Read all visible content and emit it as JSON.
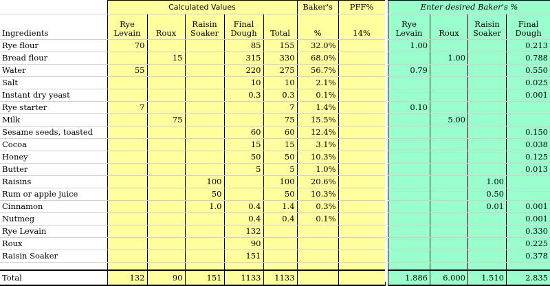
{
  "left_headers": {
    "calculated_values": "Calculated Values",
    "bakers_top": "Baker's",
    "pff_label": "PFF%",
    "ingredients": "Ingredients",
    "rye_levain_1": "Rye",
    "rye_levain_2": "Levain",
    "roux": "Roux",
    "raisin_soaker_1": "Raisin",
    "raisin_soaker_2": "Soaker",
    "final_dough_1": "Final",
    "final_dough_2": "Dough",
    "total": "Total",
    "percent": "%",
    "pff_value": "14%"
  },
  "right_headers": {
    "title": "Enter desired Baker's %",
    "rye_levain_1": "Rye",
    "rye_levain_2": "Levain",
    "roux": "Roux",
    "raisin_soaker_1": "Raisin",
    "raisin_soaker_2": "Soaker",
    "final_dough_1": "Final",
    "final_dough_2": "Dough"
  },
  "rows": [
    {
      "name": "Rye flour",
      "rye": "70",
      "roux": "",
      "raisin": "",
      "final": "85",
      "total": "155",
      "pct": "32.0%",
      "r_rye": "1.00",
      "r_roux": "",
      "r_raisin": "",
      "r_final": "0.213"
    },
    {
      "name": "Bread flour",
      "rye": "",
      "roux": "15",
      "raisin": "",
      "final": "315",
      "total": "330",
      "pct": "68.0%",
      "r_rye": "",
      "r_roux": "1.00",
      "r_raisin": "",
      "r_final": "0.788"
    },
    {
      "name": "Water",
      "rye": "55",
      "roux": "",
      "raisin": "",
      "final": "220",
      "total": "275",
      "pct": "56.7%",
      "r_rye": "0.79",
      "r_roux": "",
      "r_raisin": "",
      "r_final": "0.550"
    },
    {
      "name": "Salt",
      "rye": "",
      "roux": "",
      "raisin": "",
      "final": "10",
      "total": "10",
      "pct": "2.1%",
      "r_rye": "",
      "r_roux": "",
      "r_raisin": "",
      "r_final": "0.025"
    },
    {
      "name": "Instant dry yeast",
      "rye": "",
      "roux": "",
      "raisin": "",
      "final": "0.3",
      "total": "0.3",
      "pct": "0.1%",
      "r_rye": "",
      "r_roux": "",
      "r_raisin": "",
      "r_final": "0.001"
    },
    {
      "name": "Rye starter",
      "rye": "7",
      "roux": "",
      "raisin": "",
      "final": "",
      "total": "7",
      "pct": "1.4%",
      "r_rye": "0.10",
      "r_roux": "",
      "r_raisin": "",
      "r_final": ""
    },
    {
      "name": "Milk",
      "rye": "",
      "roux": "75",
      "raisin": "",
      "final": "",
      "total": "75",
      "pct": "15.5%",
      "r_rye": "",
      "r_roux": "5.00",
      "r_raisin": "",
      "r_final": ""
    },
    {
      "name": "Sesame seeds, toasted",
      "rye": "",
      "roux": "",
      "raisin": "",
      "final": "60",
      "total": "60",
      "pct": "12.4%",
      "r_rye": "",
      "r_roux": "",
      "r_raisin": "",
      "r_final": "0.150"
    },
    {
      "name": "Cocoa",
      "rye": "",
      "roux": "",
      "raisin": "",
      "final": "15",
      "total": "15",
      "pct": "3.1%",
      "r_rye": "",
      "r_roux": "",
      "r_raisin": "",
      "r_final": "0.038"
    },
    {
      "name": "Honey",
      "rye": "",
      "roux": "",
      "raisin": "",
      "final": "50",
      "total": "50",
      "pct": "10.3%",
      "r_rye": "",
      "r_roux": "",
      "r_raisin": "",
      "r_final": "0.125"
    },
    {
      "name": "Butter",
      "rye": "",
      "roux": "",
      "raisin": "",
      "final": "5",
      "total": "5",
      "pct": "1.0%",
      "r_rye": "",
      "r_roux": "",
      "r_raisin": "",
      "r_final": "0.013"
    },
    {
      "name": "Raisins",
      "rye": "",
      "roux": "",
      "raisin": "100",
      "final": "",
      "total": "100",
      "pct": "20.6%",
      "r_rye": "",
      "r_roux": "",
      "r_raisin": "1.00",
      "r_final": ""
    },
    {
      "name": "Rum or apple juice",
      "rye": "",
      "roux": "",
      "raisin": "50",
      "final": "",
      "total": "50",
      "pct": "10.3%",
      "r_rye": "",
      "r_roux": "",
      "r_raisin": "0.50",
      "r_final": ""
    },
    {
      "name": "Cinnamon",
      "rye": "",
      "roux": "",
      "raisin": "1.0",
      "final": "0.4",
      "total": "1.4",
      "pct": "0.3%",
      "r_rye": "",
      "r_roux": "",
      "r_raisin": "0.01",
      "r_final": "0.001"
    },
    {
      "name": "Nutmeg",
      "rye": "",
      "roux": "",
      "raisin": "",
      "final": "0.4",
      "total": "0.4",
      "pct": "0.1%",
      "r_rye": "",
      "r_roux": "",
      "r_raisin": "",
      "r_final": "0.001"
    },
    {
      "name": "Rye Levain",
      "rye": "",
      "roux": "",
      "raisin": "",
      "final": "132",
      "total": "",
      "pct": "",
      "r_rye": "",
      "r_roux": "",
      "r_raisin": "",
      "r_final": "0.330"
    },
    {
      "name": "Roux",
      "rye": "",
      "roux": "",
      "raisin": "",
      "final": "90",
      "total": "",
      "pct": "",
      "r_rye": "",
      "r_roux": "",
      "r_raisin": "",
      "r_final": "0.225"
    },
    {
      "name": "Raisin Soaker",
      "rye": "",
      "roux": "",
      "raisin": "",
      "final": "151",
      "total": "",
      "pct": "",
      "r_rye": "",
      "r_roux": "",
      "r_raisin": "",
      "r_final": "0.378"
    }
  ],
  "totals": {
    "name": "Total",
    "rye": "132",
    "roux": "90",
    "raisin": "151",
    "final": "1133",
    "total": "1133",
    "pct": "",
    "r_rye": "1.886",
    "r_roux": "6.000",
    "r_raisin": "1.510",
    "r_final": "2.835"
  },
  "colors": {
    "yellow_fill": "#ffff9e",
    "green_fill": "#99ffcc"
  }
}
